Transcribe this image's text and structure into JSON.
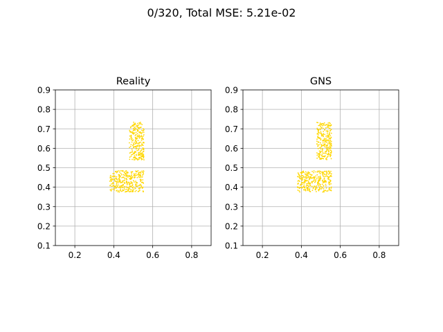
{
  "figure_title": "0/320, Total MSE: 5.21e-02",
  "colors": {
    "particle": "#FFD700",
    "grid": "#b0b0b0",
    "axis": "#000000",
    "background": "#ffffff"
  },
  "chart_data": [
    {
      "type": "scatter",
      "title": "Reality",
      "xlabel": "",
      "ylabel": "",
      "xlim": [
        0.1,
        0.9
      ],
      "ylim": [
        0.1,
        0.9
      ],
      "xticks": [
        0.2,
        0.4,
        0.6,
        0.8
      ],
      "xtick_labels": [
        "0.2",
        "0.4",
        "0.6",
        "0.8"
      ],
      "yticks": [
        0.1,
        0.2,
        0.3,
        0.4,
        0.5,
        0.6,
        0.7,
        0.8,
        0.9
      ],
      "ytick_labels": [
        "0.1",
        "0.2",
        "0.3",
        "0.4",
        "0.5",
        "0.6",
        "0.7",
        "0.8",
        "0.9"
      ],
      "grid": true,
      "series": [
        {
          "name": "vertical-block",
          "x_range": [
            0.48,
            0.555
          ],
          "y_range": [
            0.54,
            0.735
          ],
          "count": 260
        },
        {
          "name": "horizontal-block",
          "x_range": [
            0.38,
            0.555
          ],
          "y_range": [
            0.375,
            0.485
          ],
          "count": 320
        }
      ]
    },
    {
      "type": "scatter",
      "title": "GNS",
      "xlabel": "",
      "ylabel": "",
      "xlim": [
        0.1,
        0.9
      ],
      "ylim": [
        0.1,
        0.9
      ],
      "xticks": [
        0.2,
        0.4,
        0.6,
        0.8
      ],
      "xtick_labels": [
        "0.2",
        "0.4",
        "0.6",
        "0.8"
      ],
      "yticks": [
        0.1,
        0.2,
        0.3,
        0.4,
        0.5,
        0.6,
        0.7,
        0.8,
        0.9
      ],
      "ytick_labels": [
        "0.1",
        "0.2",
        "0.3",
        "0.4",
        "0.5",
        "0.6",
        "0.7",
        "0.8",
        "0.9"
      ],
      "grid": true,
      "series": [
        {
          "name": "vertical-block",
          "x_range": [
            0.48,
            0.555
          ],
          "y_range": [
            0.54,
            0.735
          ],
          "count": 260
        },
        {
          "name": "horizontal-block",
          "x_range": [
            0.38,
            0.555
          ],
          "y_range": [
            0.375,
            0.485
          ],
          "count": 320
        }
      ]
    }
  ]
}
